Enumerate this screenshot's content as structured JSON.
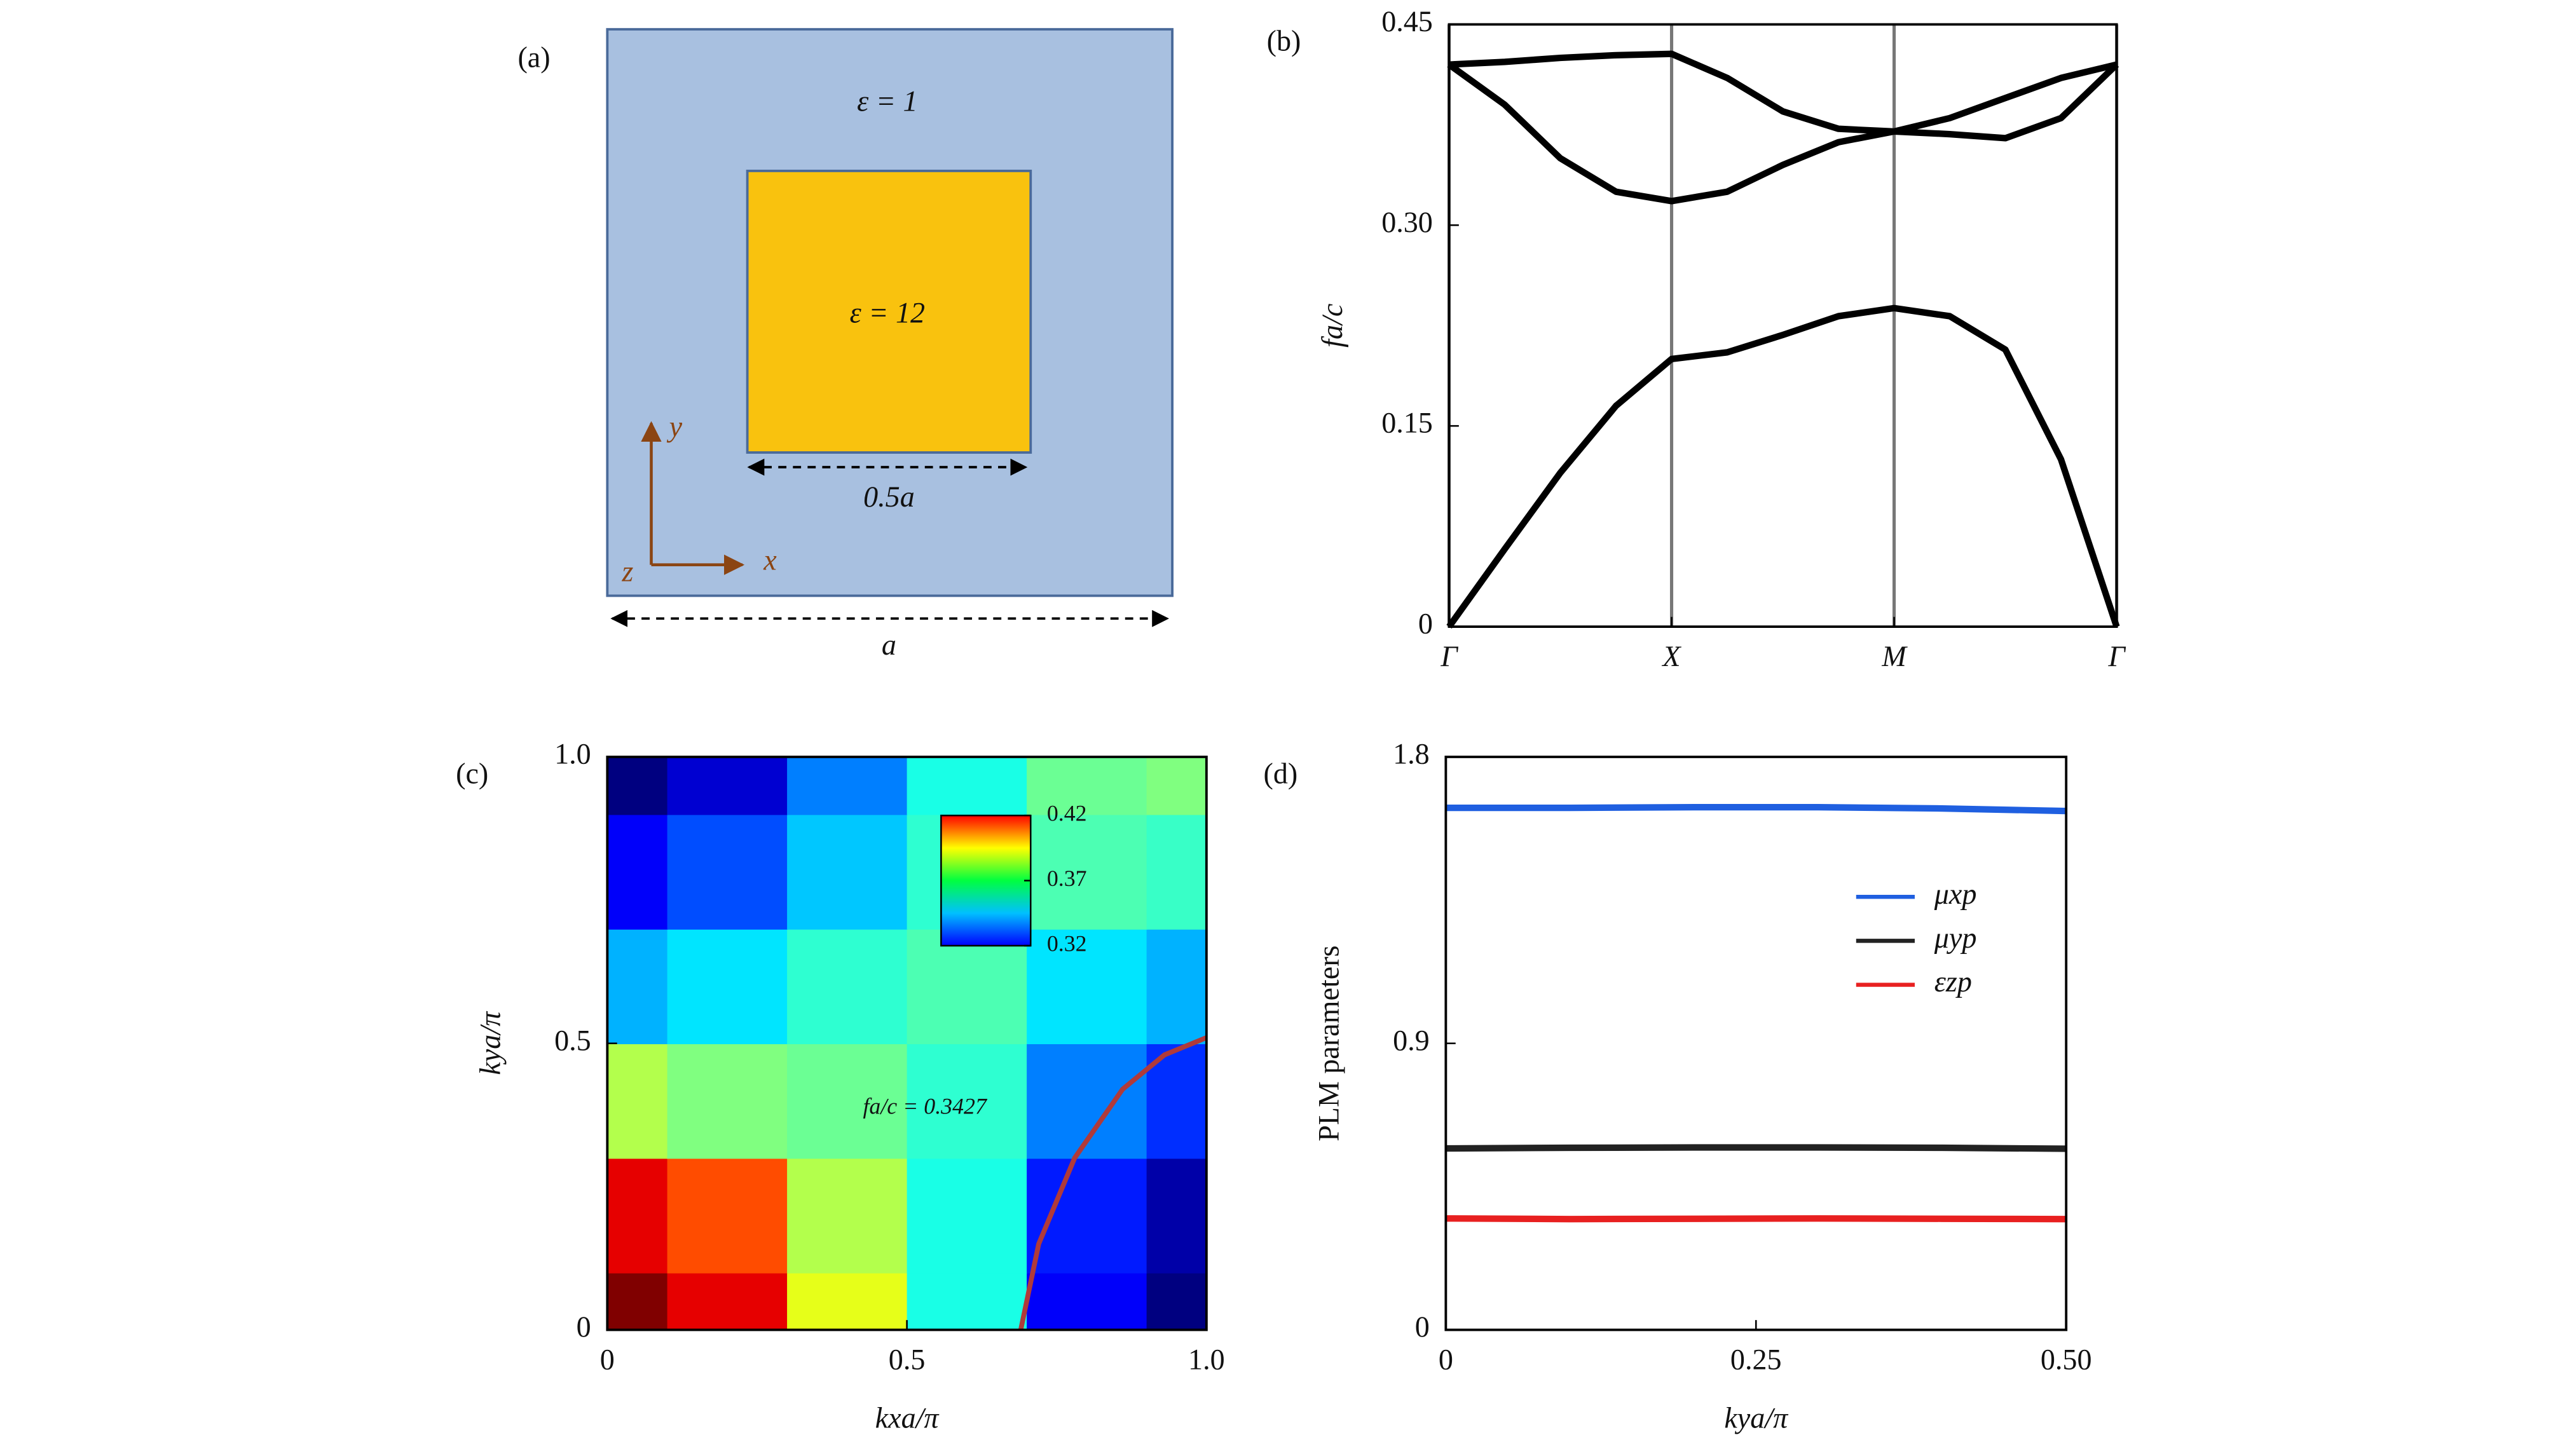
{
  "diagram": {
    "label": "(a)",
    "outer": "ε = 1",
    "inner": "ε = 12",
    "inner_width": "0.5a",
    "cell_width": "a",
    "axes": [
      "x",
      "y",
      "z"
    ]
  },
  "chart_data": [
    {
      "type": "line",
      "label": "(b)",
      "ylabel": "fa/c",
      "xlim": [
        0,
        3
      ],
      "ylim": [
        0,
        0.45
      ],
      "xticks": [
        {
          "value": 0,
          "label": "Γ"
        },
        {
          "value": 1,
          "label": "X"
        },
        {
          "value": 2,
          "label": "M"
        },
        {
          "value": 3,
          "label": "Γ"
        }
      ],
      "yticks": [
        0,
        0.15,
        {
          "value": 0.3,
          "label": "0.30"
        },
        0.45
      ],
      "vertical_lines_at_ticks": true,
      "x": [
        0,
        0.25,
        0.5,
        0.75,
        1,
        1.25,
        1.5,
        1.75,
        2,
        2.25,
        2.5,
        2.75,
        3
      ],
      "series": [
        {
          "color": "#000000",
          "values": [
            0,
            0.058,
            0.115,
            0.165,
            0.2,
            0.205,
            0.218,
            0.232,
            0.238,
            0.232,
            0.207,
            0.125,
            0
          ]
        },
        {
          "color": "#000000",
          "values": [
            0.42,
            0.39,
            0.35,
            0.325,
            0.318,
            0.325,
            0.345,
            0.362,
            0.37,
            0.368,
            0.365,
            0.38,
            0.42
          ]
        },
        {
          "color": "#000000",
          "values": [
            0.42,
            0.422,
            0.425,
            0.427,
            0.428,
            0.41,
            0.385,
            0.372,
            0.37,
            0.38,
            0.395,
            0.41,
            0.42
          ]
        }
      ]
    },
    {
      "type": "heatmap",
      "label": "(c)",
      "xlabel": "kxa/π",
      "ylabel": "kya/π",
      "xlim": [
        0,
        1
      ],
      "ylim": [
        0,
        1
      ],
      "xticks": [
        0,
        0.5,
        {
          "value": 1,
          "label": "1.0"
        }
      ],
      "yticks": [
        0,
        0.5,
        {
          "value": 1,
          "label": "1.0"
        }
      ],
      "x": [
        0,
        0.2,
        0.4,
        0.6,
        0.8,
        1
      ],
      "y": [
        0,
        0.2,
        0.4,
        0.6,
        0.8,
        1
      ],
      "z": [
        [
          0.42,
          0.41,
          0.38,
          0.36,
          0.332,
          0.32
        ],
        [
          0.41,
          0.4,
          0.375,
          0.36,
          0.335,
          0.324
        ],
        [
          0.375,
          0.37,
          0.368,
          0.362,
          0.345,
          0.337
        ],
        [
          0.35,
          0.355,
          0.362,
          0.365,
          0.355,
          0.35
        ],
        [
          0.332,
          0.34,
          0.352,
          0.362,
          0.365,
          0.363
        ],
        [
          0.32,
          0.328,
          0.345,
          0.36,
          0.368,
          0.37
        ]
      ],
      "clim": [
        0.32,
        0.42
      ],
      "cticks": [
        0.32,
        0.37,
        0.42
      ],
      "contour": {
        "color": "#b03a3a",
        "x": [
          0.69,
          0.72,
          0.78,
          0.86,
          0.93,
          1
        ],
        "y": [
          0,
          0.15,
          0.3,
          0.42,
          0.48,
          0.51
        ]
      },
      "annotation": "fa/c = 0.3427"
    },
    {
      "type": "line",
      "label": "(d)",
      "xlabel": "kya/π",
      "ylabel": "PLM parameters",
      "xlim": [
        0,
        0.5
      ],
      "ylim": [
        0,
        1.8
      ],
      "xticks": [
        0,
        0.25,
        {
          "value": 0.5,
          "label": "0.50"
        }
      ],
      "yticks": [
        0,
        0.9,
        1.8
      ],
      "x": [
        0,
        0.1,
        0.2,
        0.3,
        0.4,
        0.5
      ],
      "series": [
        {
          "name": "μxp",
          "color": "#1f5fe0",
          "values": [
            1.64,
            1.64,
            1.642,
            1.642,
            1.638,
            1.63
          ]
        },
        {
          "name": "μyp",
          "color": "#222222",
          "values": [
            0.57,
            0.572,
            0.573,
            0.573,
            0.572,
            0.569
          ]
        },
        {
          "name": "εzp",
          "color": "#e82020",
          "values": [
            0.35,
            0.348,
            0.349,
            0.35,
            0.349,
            0.348
          ]
        }
      ]
    }
  ]
}
